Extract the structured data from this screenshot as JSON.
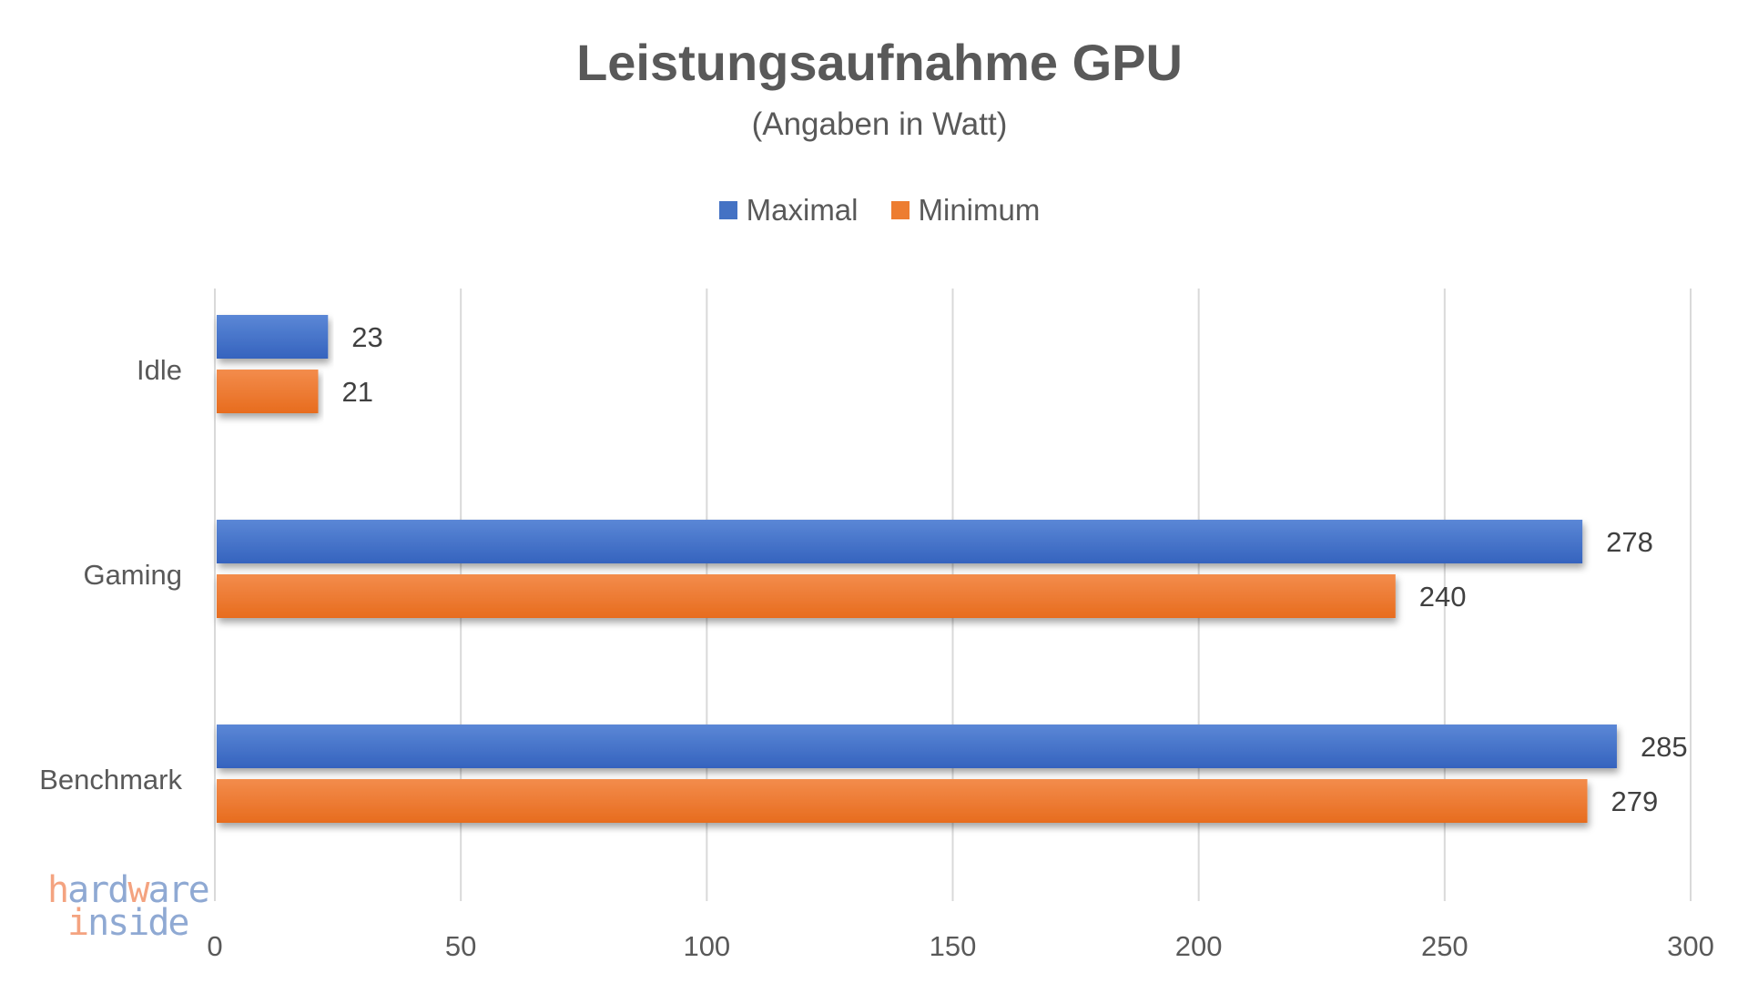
{
  "chart_data": {
    "type": "bar",
    "orientation": "horizontal",
    "title": "Leistungsaufnahme GPU",
    "subtitle": "(Angaben in Watt)",
    "categories": [
      "Idle",
      "Gaming",
      "Benchmark"
    ],
    "series": [
      {
        "name": "Maximal",
        "values": [
          23,
          278,
          285
        ],
        "color": "#4472C4"
      },
      {
        "name": "Minimum",
        "values": [
          21,
          240,
          279
        ],
        "color": "#ED7D31"
      }
    ],
    "xlim": [
      0,
      300
    ],
    "xticks": [
      0,
      50,
      100,
      150,
      200,
      250,
      300
    ],
    "xlabel": "",
    "ylabel": "",
    "grid": true,
    "legend_position": "top",
    "data_labels": true
  },
  "watermark": {
    "line1": "hardware",
    "line2": "inside"
  }
}
